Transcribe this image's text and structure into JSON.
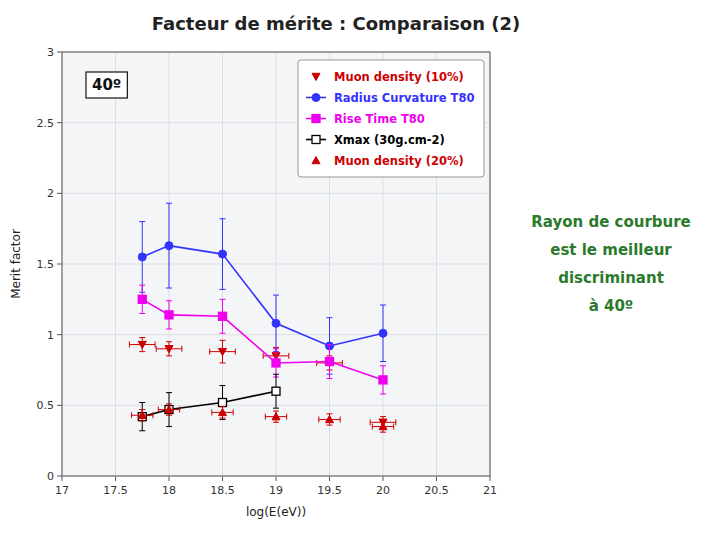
{
  "chart_data": {
    "type": "line",
    "title": "Facteur de mérite : Comparaison (2)",
    "xlabel": "log(E(eV))",
    "ylabel": "Merit factor",
    "xlim": [
      17,
      21
    ],
    "ylim": [
      0,
      3
    ],
    "xticks": [
      17,
      17.5,
      18,
      18.5,
      19,
      19.5,
      20,
      20.5,
      21
    ],
    "yticks": [
      0,
      0.5,
      1,
      1.5,
      2,
      2.5,
      3
    ],
    "grid": true,
    "legend": "upper right",
    "annotations": [
      "40º",
      "Rayon de courbure",
      "est le meilleur",
      "discriminant",
      "à 40º"
    ],
    "series": [
      {
        "name": "Muon density (10%)",
        "color": "#CC0000",
        "marker": "triangle-down",
        "line_style": "none",
        "x": [
          17.75,
          18.0,
          18.5,
          19.0,
          19.5,
          20.0
        ],
        "values": [
          0.93,
          0.9,
          0.88,
          0.85,
          0.8,
          0.38
        ],
        "errors": [
          0.05,
          0.05,
          0.08,
          0.06,
          0.05,
          0.04
        ],
        "x_errors": [
          0.12,
          0.12,
          0.12,
          0.12,
          0.12,
          0.12
        ]
      },
      {
        "name": "Radius Curvature T80",
        "color": "#3333FF",
        "marker": "circle",
        "line_style": "solid",
        "x": [
          17.75,
          18.0,
          18.5,
          19.0,
          19.5,
          20.0
        ],
        "values": [
          1.55,
          1.63,
          1.57,
          1.08,
          0.92,
          1.01
        ],
        "errors": [
          0.25,
          0.3,
          0.25,
          0.2,
          0.2,
          0.2
        ]
      },
      {
        "name": "Rise Time T80",
        "color": "#EE00EE",
        "marker": "square",
        "line_style": "solid",
        "x": [
          17.75,
          18.0,
          18.5,
          19.0,
          19.5,
          20.0
        ],
        "values": [
          1.25,
          1.14,
          1.13,
          0.8,
          0.81,
          0.68
        ],
        "errors": [
          0.1,
          0.1,
          0.12,
          0.1,
          0.12,
          0.1
        ]
      },
      {
        "name": "Xmax (30g.cm-2)",
        "color": "#000000",
        "marker": "square-open",
        "line_style": "solid",
        "x": [
          17.75,
          18.0,
          18.5,
          19.0
        ],
        "values": [
          0.42,
          0.47,
          0.52,
          0.6
        ],
        "errors": [
          0.1,
          0.12,
          0.12,
          0.12
        ]
      },
      {
        "name": "Muon density (20%)",
        "color": "#CC0000",
        "marker": "triangle-up",
        "line_style": "none",
        "x": [
          17.75,
          18.0,
          18.5,
          19.0,
          19.5,
          20.0
        ],
        "values": [
          0.43,
          0.47,
          0.45,
          0.42,
          0.4,
          0.35
        ],
        "errors": [
          0.04,
          0.04,
          0.04,
          0.04,
          0.04,
          0.04
        ],
        "x_errors": [
          0.1,
          0.1,
          0.1,
          0.1,
          0.1,
          0.1
        ]
      }
    ]
  }
}
